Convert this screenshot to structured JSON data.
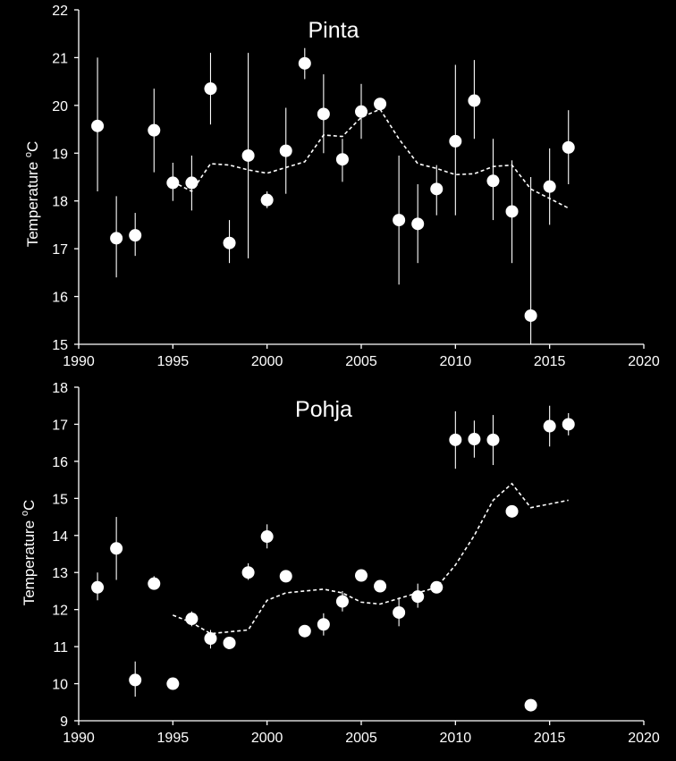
{
  "chart_data": [
    {
      "type": "scatter",
      "title": "Pinta",
      "ylabel_main": "Temperature ",
      "ylabel_sup": "o",
      "ylabel_unit": "C",
      "xlim": [
        1990,
        2020
      ],
      "ylim": [
        15,
        22
      ],
      "xticks": [
        1990,
        1995,
        2000,
        2005,
        2010,
        2015,
        2020
      ],
      "yticks": [
        15,
        16,
        17,
        18,
        19,
        20,
        21,
        22
      ],
      "grid": false,
      "colors": {
        "background": "#000000",
        "marker": "#ffffff",
        "axis": "#ffffff",
        "trend": "#ffffff"
      },
      "points": [
        {
          "x": 1991,
          "y": 19.57,
          "lo": 18.2,
          "hi": 21.0
        },
        {
          "x": 1992,
          "y": 17.22,
          "lo": 16.4,
          "hi": 18.1
        },
        {
          "x": 1993,
          "y": 17.28,
          "lo": 16.85,
          "hi": 17.75
        },
        {
          "x": 1994,
          "y": 19.48,
          "lo": 18.6,
          "hi": 20.35
        },
        {
          "x": 1995,
          "y": 18.38,
          "lo": 18.0,
          "hi": 18.8
        },
        {
          "x": 1996,
          "y": 18.38,
          "lo": 17.8,
          "hi": 18.95
        },
        {
          "x": 1997,
          "y": 20.35,
          "lo": 19.6,
          "hi": 21.1
        },
        {
          "x": 1998,
          "y": 17.12,
          "lo": 16.7,
          "hi": 17.6
        },
        {
          "x": 1999,
          "y": 18.95,
          "lo": 16.8,
          "hi": 21.1
        },
        {
          "x": 2000,
          "y": 18.02,
          "lo": 17.85,
          "hi": 18.2
        },
        {
          "x": 2001,
          "y": 19.05,
          "lo": 18.15,
          "hi": 19.95
        },
        {
          "x": 2002,
          "y": 20.88,
          "lo": 20.55,
          "hi": 21.2
        },
        {
          "x": 2003,
          "y": 19.82,
          "lo": 19.0,
          "hi": 20.65
        },
        {
          "x": 2004,
          "y": 18.87,
          "lo": 18.4,
          "hi": 19.3
        },
        {
          "x": 2005,
          "y": 19.87,
          "lo": 19.3,
          "hi": 20.45
        },
        {
          "x": 2006,
          "y": 20.03,
          "lo": 19.9,
          "hi": 20.15
        },
        {
          "x": 2007,
          "y": 17.6,
          "lo": 16.25,
          "hi": 18.95
        },
        {
          "x": 2008,
          "y": 17.52,
          "lo": 16.7,
          "hi": 18.35
        },
        {
          "x": 2009,
          "y": 18.25,
          "lo": 17.7,
          "hi": 18.75
        },
        {
          "x": 2010,
          "y": 19.25,
          "lo": 17.7,
          "hi": 20.85
        },
        {
          "x": 2011,
          "y": 20.1,
          "lo": 19.3,
          "hi": 20.95
        },
        {
          "x": 2012,
          "y": 18.42,
          "lo": 17.6,
          "hi": 19.3
        },
        {
          "x": 2013,
          "y": 17.78,
          "lo": 16.7,
          "hi": 18.85
        },
        {
          "x": 2014,
          "y": 15.6,
          "lo": 15.0,
          "hi": 18.5
        },
        {
          "x": 2015,
          "y": 18.3,
          "lo": 17.5,
          "hi": 19.1
        },
        {
          "x": 2016,
          "y": 19.12,
          "lo": 18.35,
          "hi": 19.9
        }
      ],
      "trend": {
        "x": [
          1995,
          1996,
          1997,
          1998,
          1999,
          2000,
          2001,
          2002,
          2003,
          2004,
          2005,
          2006,
          2007,
          2008,
          2009,
          2010,
          2011,
          2012,
          2013,
          2014,
          2015,
          2016
        ],
        "y": [
          18.4,
          18.2,
          18.78,
          18.75,
          18.65,
          18.58,
          18.7,
          18.82,
          19.38,
          19.35,
          19.75,
          19.92,
          19.3,
          18.78,
          18.68,
          18.55,
          18.57,
          18.72,
          18.75,
          18.25,
          18.05,
          17.85
        ]
      }
    },
    {
      "type": "scatter",
      "title": "Pohja",
      "ylabel_main": "Temperature ",
      "ylabel_sup": "o",
      "ylabel_unit": "C",
      "xlim": [
        1990,
        2020
      ],
      "ylim": [
        9,
        18
      ],
      "xticks": [
        1990,
        1995,
        2000,
        2005,
        2010,
        2015,
        2020
      ],
      "yticks": [
        9,
        10,
        11,
        12,
        13,
        14,
        15,
        16,
        17,
        18
      ],
      "grid": false,
      "colors": {
        "background": "#000000",
        "marker": "#ffffff",
        "axis": "#ffffff",
        "trend": "#ffffff"
      },
      "points": [
        {
          "x": 1991,
          "y": 12.6,
          "lo": 12.25,
          "hi": 13.0
        },
        {
          "x": 1992,
          "y": 13.65,
          "lo": 12.8,
          "hi": 14.5
        },
        {
          "x": 1993,
          "y": 10.1,
          "lo": 9.65,
          "hi": 10.6
        },
        {
          "x": 1994,
          "y": 12.7,
          "lo": 12.55,
          "hi": 12.9
        },
        {
          "x": 1995,
          "y": 10.0,
          "lo": 10.0,
          "hi": 10.0
        },
        {
          "x": 1996,
          "y": 11.75,
          "lo": 11.55,
          "hi": 11.95
        },
        {
          "x": 1997,
          "y": 11.22,
          "lo": 10.95,
          "hi": 11.45
        },
        {
          "x": 1998,
          "y": 11.1,
          "lo": 11.05,
          "hi": 11.15
        },
        {
          "x": 1999,
          "y": 13.0,
          "lo": 12.8,
          "hi": 13.25
        },
        {
          "x": 2000,
          "y": 13.97,
          "lo": 13.65,
          "hi": 14.3
        },
        {
          "x": 2001,
          "y": 12.9,
          "lo": 12.85,
          "hi": 12.95
        },
        {
          "x": 2002,
          "y": 11.42,
          "lo": 11.35,
          "hi": 11.5
        },
        {
          "x": 2003,
          "y": 11.6,
          "lo": 11.3,
          "hi": 11.9
        },
        {
          "x": 2004,
          "y": 12.22,
          "lo": 11.95,
          "hi": 12.5
        },
        {
          "x": 2005,
          "y": 12.92,
          "lo": 12.85,
          "hi": 13.0
        },
        {
          "x": 2006,
          "y": 12.63,
          "lo": 12.55,
          "hi": 12.7
        },
        {
          "x": 2007,
          "y": 11.92,
          "lo": 11.55,
          "hi": 12.3
        },
        {
          "x": 2008,
          "y": 12.35,
          "lo": 12.05,
          "hi": 12.7
        },
        {
          "x": 2009,
          "y": 12.6,
          "lo": 12.5,
          "hi": 12.7
        },
        {
          "x": 2010,
          "y": 16.58,
          "lo": 15.8,
          "hi": 17.35
        },
        {
          "x": 2011,
          "y": 16.6,
          "lo": 16.1,
          "hi": 17.1
        },
        {
          "x": 2012,
          "y": 16.58,
          "lo": 15.9,
          "hi": 17.25
        },
        {
          "x": 2013,
          "y": 14.65,
          "lo": 14.55,
          "hi": 14.75
        },
        {
          "x": 2014,
          "y": 9.42,
          "lo": 9.4,
          "hi": 9.45
        },
        {
          "x": 2015,
          "y": 16.95,
          "lo": 16.4,
          "hi": 17.5
        },
        {
          "x": 2016,
          "y": 17.0,
          "lo": 16.7,
          "hi": 17.3
        }
      ],
      "trend": {
        "x": [
          1995,
          1996,
          1997,
          1998,
          1999,
          2000,
          2001,
          2002,
          2003,
          2004,
          2005,
          2006,
          2007,
          2008,
          2009,
          2010,
          2011,
          2012,
          2013,
          2014,
          2015,
          2016
        ],
        "y": [
          11.85,
          11.65,
          11.35,
          11.4,
          11.45,
          12.25,
          12.45,
          12.5,
          12.55,
          12.45,
          12.2,
          12.15,
          12.3,
          12.45,
          12.6,
          13.2,
          14.0,
          14.95,
          15.4,
          14.75,
          14.85,
          14.95
        ]
      }
    }
  ]
}
